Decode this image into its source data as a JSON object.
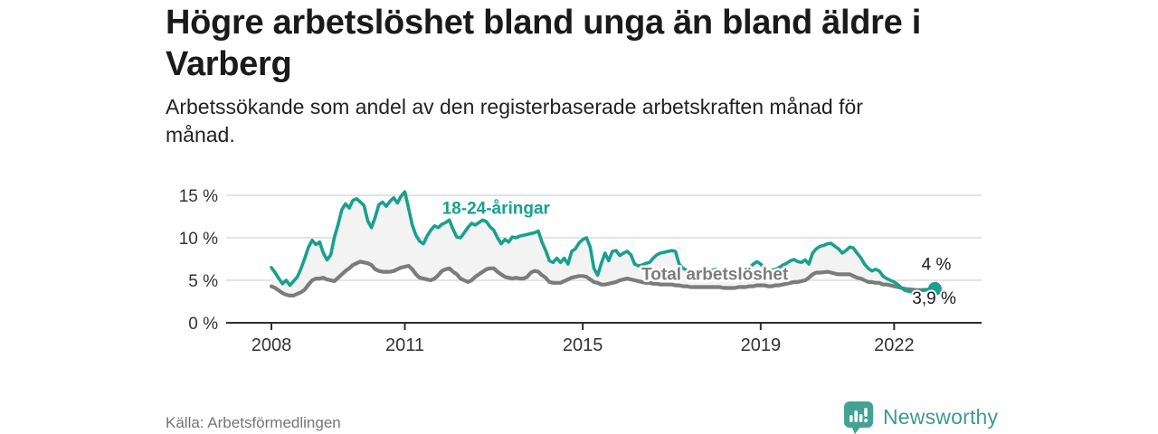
{
  "header": {
    "title": "Högre arbetslöshet bland unga än bland äldre i Varberg",
    "subtitle": "Arbetssökande som andel av den registerbaserade arbetskraften månad för månad."
  },
  "footer": {
    "source": "Källa: Arbetsförmedlingen",
    "logo_text": "Newsworthy"
  },
  "colors": {
    "youth_line": "#19A08E",
    "total_line": "#7C7C7C",
    "logo_teal": "#44A294",
    "annotation_dark": "#1a1a1a"
  },
  "chart_data": {
    "type": "line",
    "title": "Högre arbetslöshet bland unga än bland äldre i Varberg",
    "subtitle": "Arbetssökande som andel av den registerbaserade arbetskraften månad för månad.",
    "unit": "%",
    "ylim": [
      0,
      16
    ],
    "grid": true,
    "style": {
      "grid_color": "#DCDCDC",
      "axis_color": "#2F2F2F",
      "band_color": "#F3F3F3"
    },
    "y_axis": {
      "ticks": [
        {
          "value": 0,
          "label": "0 %"
        },
        {
          "value": 5,
          "label": "5 %"
        },
        {
          "value": 10,
          "label": "10 %"
        },
        {
          "value": 15,
          "label": "15 %"
        }
      ]
    },
    "x_axis": {
      "ticks": [
        {
          "value": 2008,
          "label": "2008"
        },
        {
          "value": 2011,
          "label": "2011"
        },
        {
          "value": 2015,
          "label": "2015"
        },
        {
          "value": 2019,
          "label": "2019"
        },
        {
          "value": 2022,
          "label": "2022"
        }
      ]
    },
    "series": [
      {
        "name": "18-24-åringar",
        "color": "#19A08E",
        "width": 3.6,
        "start_year": 2008,
        "step_months": 1,
        "end_label": "4 %",
        "end_dot": true,
        "values": [
          6.5,
          5.9,
          5.2,
          4.6,
          5.0,
          4.4,
          4.9,
          5.4,
          6.4,
          7.6,
          8.9,
          9.7,
          9.2,
          9.5,
          8.2,
          7.4,
          8.0,
          10.1,
          11.6,
          13.3,
          14.0,
          13.5,
          14.4,
          14.6,
          14.2,
          13.8,
          12.0,
          11.2,
          12.4,
          13.9,
          14.2,
          13.7,
          14.3,
          14.7,
          14.1,
          14.9,
          15.4,
          13.5,
          11.5,
          10.3,
          9.6,
          9.3,
          10.2,
          10.9,
          11.4,
          11.2,
          11.6,
          11.8,
          12.1,
          11.0,
          10.1,
          10.0,
          10.6,
          11.2,
          11.7,
          11.5,
          11.8,
          12.1,
          11.9,
          11.3,
          10.9,
          10.0,
          9.3,
          9.8,
          9.5,
          10.1,
          10.0,
          10.2,
          10.3,
          10.4,
          10.5,
          10.6,
          10.8,
          9.5,
          8.5,
          7.3,
          7.1,
          7.6,
          7.1,
          7.6,
          6.9,
          8.4,
          8.7,
          9.4,
          9.8,
          10.0,
          8.9,
          6.4,
          5.6,
          7.0,
          8.2,
          7.3,
          8.4,
          8.5,
          7.9,
          8.2,
          8.4,
          8.0,
          6.9,
          6.7,
          6.8,
          7.0,
          7.1,
          7.6,
          8.0,
          8.2,
          8.3,
          8.4,
          8.5,
          8.4,
          6.9,
          6.4,
          6.2,
          6.1,
          6.1,
          6.0,
          6.1,
          6.1,
          6.2,
          6.2,
          6.3,
          6.1,
          6.0,
          5.9,
          6.0,
          6.0,
          6.1,
          6.0,
          6.2,
          6.5,
          6.9,
          7.2,
          6.9,
          6.4,
          6.2,
          6.2,
          6.3,
          6.5,
          6.8,
          7.0,
          7.3,
          7.45,
          7.2,
          7.1,
          7.4,
          6.9,
          8.2,
          8.7,
          9.0,
          9.1,
          9.3,
          9.35,
          9.0,
          8.7,
          8.2,
          8.5,
          8.9,
          8.8,
          8.2,
          7.65,
          6.9,
          6.4,
          6.1,
          6.3,
          6.1,
          5.5,
          5.2,
          5.0,
          4.8,
          4.5,
          4.1,
          3.8,
          3.7,
          3.6,
          3.6,
          3.7,
          3.9,
          3.9,
          3.95,
          4.0
        ]
      },
      {
        "name": "Total arbetslöshet",
        "color": "#7C7C7C",
        "width": 4.2,
        "start_year": 2008,
        "step_months": 1,
        "end_label": "3,9 %",
        "end_dot": false,
        "values": [
          4.3,
          4.1,
          3.8,
          3.5,
          3.3,
          3.2,
          3.2,
          3.4,
          3.6,
          3.9,
          4.5,
          5.0,
          5.2,
          5.2,
          5.3,
          5.1,
          5.0,
          4.9,
          5.3,
          5.7,
          6.1,
          6.4,
          6.8,
          7.0,
          7.2,
          7.1,
          7.0,
          6.8,
          6.3,
          6.1,
          6.0,
          6.0,
          6.0,
          6.1,
          6.3,
          6.5,
          6.6,
          6.7,
          6.3,
          5.7,
          5.3,
          5.2,
          5.1,
          5.0,
          5.2,
          5.6,
          6.1,
          6.3,
          6.4,
          6.0,
          5.7,
          5.2,
          5.0,
          4.8,
          5.0,
          5.4,
          5.7,
          6.0,
          6.3,
          6.4,
          6.4,
          6.0,
          5.7,
          5.4,
          5.3,
          5.2,
          5.3,
          5.2,
          5.2,
          5.4,
          5.9,
          6.1,
          6.0,
          5.6,
          5.3,
          4.8,
          4.7,
          4.7,
          4.7,
          4.9,
          5.1,
          5.3,
          5.4,
          5.5,
          5.5,
          5.4,
          5.1,
          4.8,
          4.7,
          4.5,
          4.5,
          4.6,
          4.7,
          4.8,
          5.0,
          5.1,
          5.2,
          5.1,
          5.0,
          4.9,
          4.8,
          4.7,
          4.7,
          4.6,
          4.6,
          4.5,
          4.5,
          4.5,
          4.5,
          4.4,
          4.4,
          4.3,
          4.3,
          4.2,
          4.2,
          4.2,
          4.2,
          4.2,
          4.2,
          4.2,
          4.2,
          4.2,
          4.1,
          4.1,
          4.1,
          4.1,
          4.2,
          4.2,
          4.2,
          4.3,
          4.3,
          4.4,
          4.4,
          4.4,
          4.3,
          4.3,
          4.4,
          4.4,
          4.5,
          4.6,
          4.7,
          4.8,
          4.8,
          4.9,
          5.0,
          5.3,
          5.7,
          5.9,
          5.9,
          5.95,
          6.0,
          5.9,
          5.8,
          5.7,
          5.7,
          5.7,
          5.7,
          5.5,
          5.3,
          5.2,
          5.0,
          4.8,
          4.8,
          4.7,
          4.7,
          4.5,
          4.5,
          4.4,
          4.3,
          4.2,
          4.1,
          4.0,
          3.95,
          3.9,
          3.85,
          3.85,
          3.85,
          3.9,
          3.9,
          3.9
        ]
      }
    ],
    "annotations": [
      {
        "text": "18-24-åringar",
        "year": 2013.05,
        "value": 12.8,
        "color": "#19A08E",
        "bold": true
      },
      {
        "text": "Total arbetslöshet",
        "year": 2017.97,
        "value": 5.05,
        "color": "#7C7C7C",
        "bold": true
      },
      {
        "text": "4 %",
        "year": 2022.95,
        "value": 6.2,
        "color": "#1a1a1a",
        "bold": false
      },
      {
        "text": "3,9 %",
        "year": 2022.9,
        "value": 2.25,
        "color": "#1a1a1a",
        "bold": false
      }
    ],
    "legend_position": "inline-labels"
  }
}
